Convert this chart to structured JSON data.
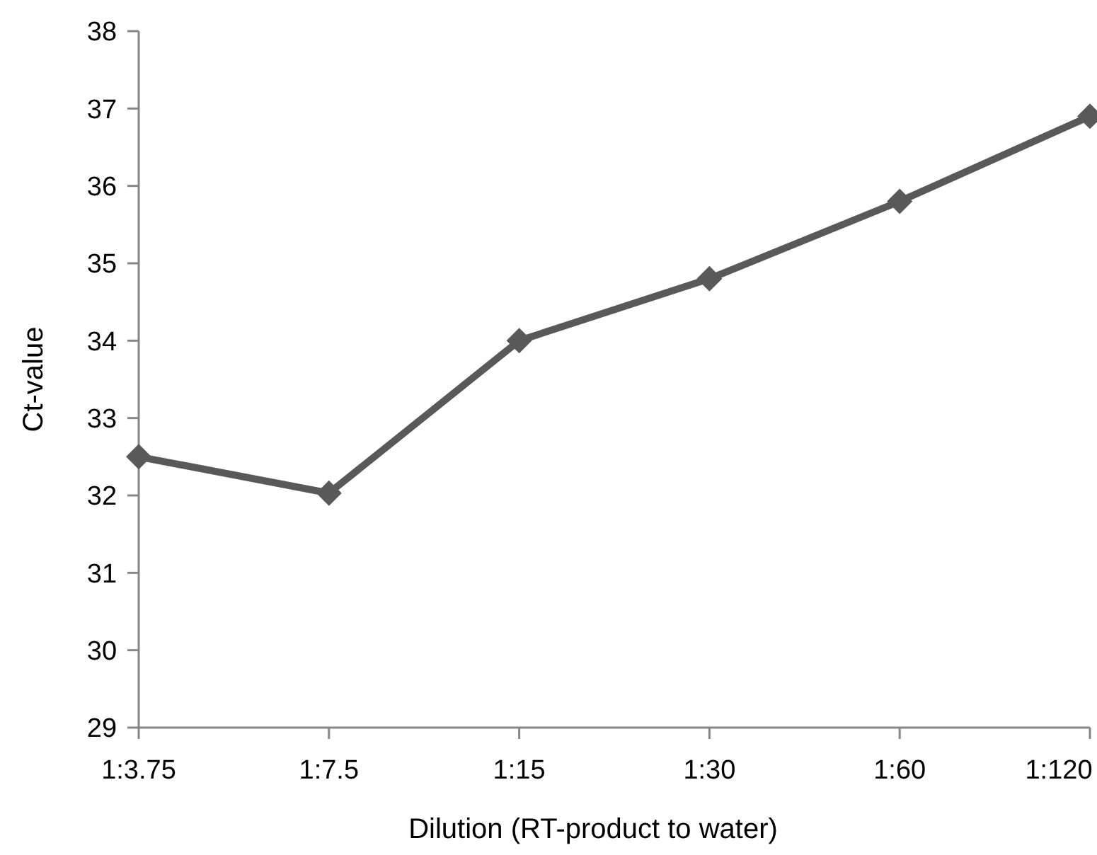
{
  "chart_data": {
    "type": "line",
    "xlabel": "Dilution (RT-product to water)",
    "ylabel": "Ct-value",
    "categories": [
      "1:3.75",
      "1:7.5",
      "1:15",
      "1:30",
      "1:60",
      "1:120"
    ],
    "series": [
      {
        "color": "#595959",
        "values": [
          32.5,
          32.03,
          34.0,
          34.8,
          35.8,
          36.9
        ]
      }
    ],
    "ylim": [
      29,
      38
    ],
    "yticks": [
      29,
      30,
      31,
      32,
      33,
      34,
      35,
      36,
      37,
      38
    ],
    "grid": false,
    "marker": "diamond",
    "line_style": "solid"
  }
}
